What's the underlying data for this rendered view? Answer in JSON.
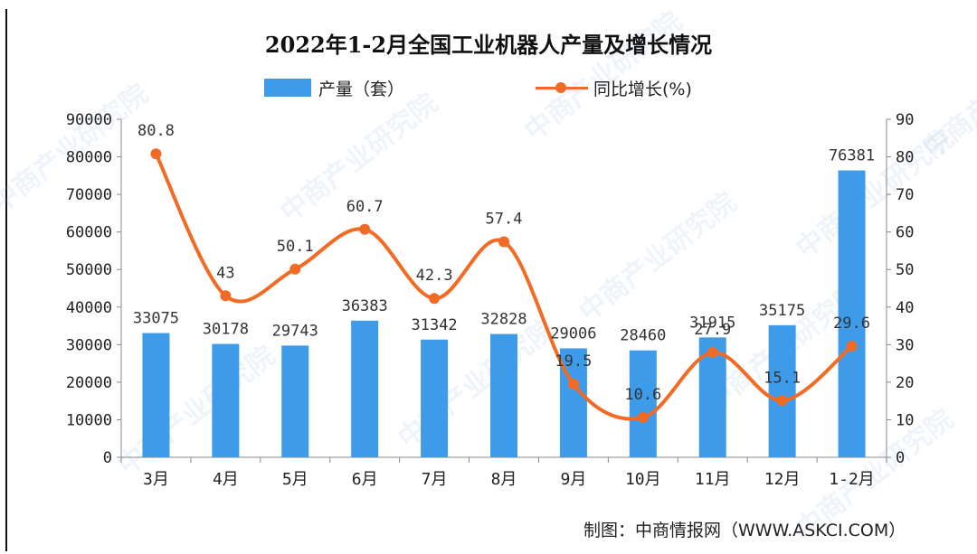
{
  "chart_data": {
    "type": "bar",
    "title": "2022年1-2月全国工业机器人产量及增长情况",
    "categories": [
      "3月",
      "4月",
      "5月",
      "6月",
      "7月",
      "8月",
      "9月",
      "10月",
      "11月",
      "12月",
      "1-2月"
    ],
    "series": [
      {
        "name": "产量（套）",
        "type": "bar",
        "axis": "left",
        "color": "#3d9bea",
        "values": [
          33075,
          30178,
          29743,
          36383,
          31342,
          32828,
          29006,
          28460,
          31915,
          35175,
          76381
        ],
        "labels": [
          "33075",
          "30178",
          "29743",
          "36383",
          "31342",
          "32828",
          "29006",
          "28460",
          "31915",
          "35175",
          "76381"
        ]
      },
      {
        "name": "同比增长(%)",
        "type": "line",
        "axis": "right",
        "color": "#f26b25",
        "values": [
          80.8,
          43,
          50.1,
          60.7,
          42.3,
          57.4,
          19.5,
          10.6,
          27.9,
          15.1,
          29.6
        ],
        "labels": [
          "80.8",
          "43",
          "50.1",
          "60.7",
          "42.3",
          "57.4",
          "19.5",
          "10.6",
          "27.9",
          "15.1",
          "29.6"
        ]
      }
    ],
    "y_left": {
      "min": 0,
      "max": 90000,
      "ticks": [
        "0",
        "10000",
        "20000",
        "30000",
        "40000",
        "50000",
        "60000",
        "70000",
        "80000",
        "90000"
      ]
    },
    "y_right": {
      "min": 0,
      "max": 90,
      "ticks": [
        "0",
        "10",
        "20",
        "30",
        "40",
        "50",
        "60",
        "70",
        "80",
        "90"
      ]
    },
    "grid": false,
    "legend_position": "top-center"
  },
  "source": "制图：中商情报网（WWW.ASKCI.COM）",
  "watermark": "中商产业研究院"
}
